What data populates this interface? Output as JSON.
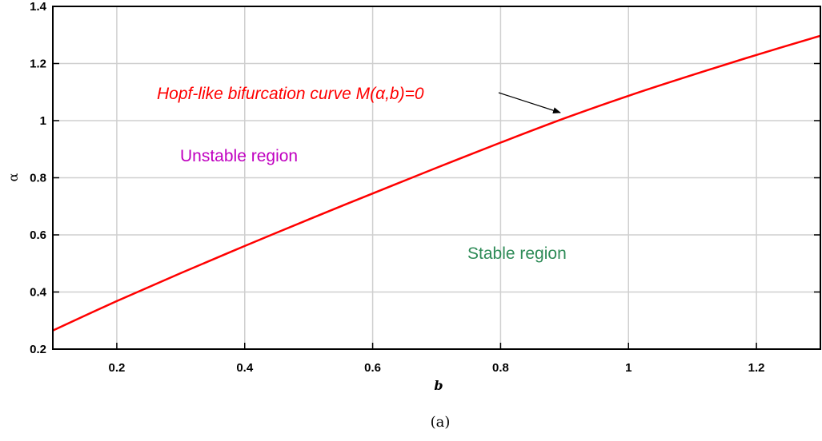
{
  "chart_data": {
    "type": "line",
    "xlabel": "b",
    "ylabel": "α",
    "xlim": [
      0.1,
      1.3
    ],
    "ylim": [
      0.2,
      1.4
    ],
    "xticks": [
      "0.2",
      "0.4",
      "0.6",
      "0.8",
      "1",
      "1.2"
    ],
    "yticks": [
      "0.2",
      "0.4",
      "0.6",
      "0.8",
      "1",
      "1.2",
      "1.4"
    ],
    "grid": true,
    "series": [
      {
        "color": "#ff0000",
        "x": [
          0.1,
          0.2,
          0.3,
          0.4,
          0.5,
          0.6,
          0.7,
          0.8,
          0.9,
          1.0,
          1.1,
          1.2,
          1.3
        ],
        "y": [
          0.265,
          0.368,
          0.466,
          0.561,
          0.654,
          0.745,
          0.835,
          0.923,
          1.008,
          1.087,
          1.16,
          1.23,
          1.297
        ]
      }
    ],
    "annotations": [
      {
        "text": "Hopf-like bifurcation curve M(α,b)=0",
        "color": "#ff0000",
        "arrow_to": [
          0.9,
          1.01
        ]
      },
      {
        "text": "Unstable region",
        "color": "#c000c0"
      },
      {
        "text": "Stable region",
        "color": "#2e8b57"
      }
    ]
  },
  "caption": "(a)"
}
